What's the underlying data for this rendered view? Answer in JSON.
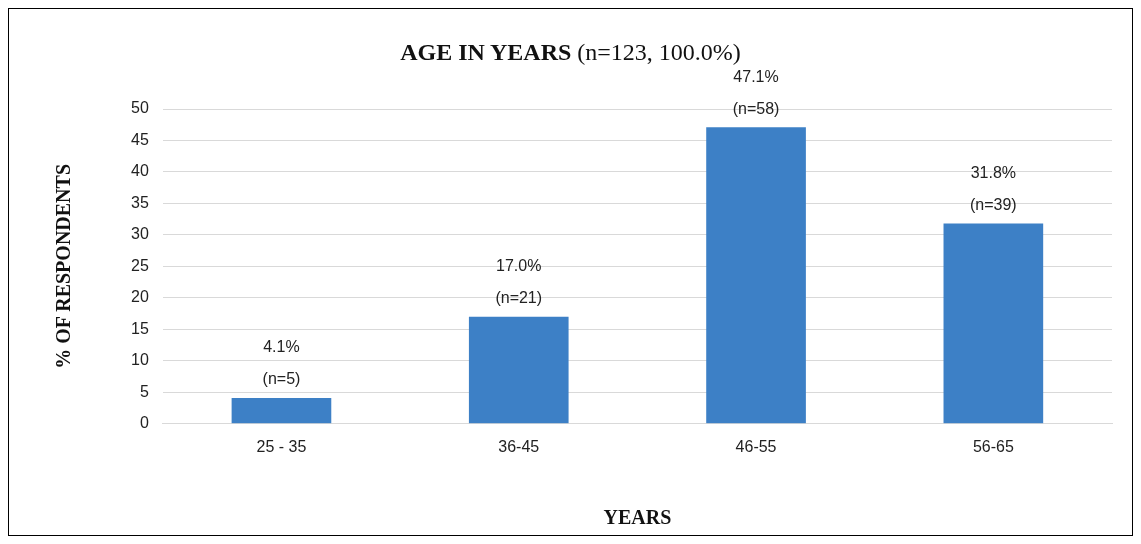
{
  "chart_data": {
    "type": "bar",
    "title": "AGE IN YEARS",
    "subtitle": "(n=123, 100.0%)",
    "xlabel": "YEARS",
    "ylabel": "% OF RESPONDENTS",
    "categories": [
      "25 - 35",
      "36-45",
      "46-55",
      "56-65"
    ],
    "values": [
      4.1,
      17.0,
      47.1,
      31.8
    ],
    "value_labels": [
      "4.1%\n(n=5)",
      "17.0%\n(n=21)",
      "47.1%\n(n=58)",
      "31.8%\n(n=39)"
    ],
    "color": "#3d80c6",
    "ylim": [
      0,
      50
    ],
    "yticks": [
      0,
      5,
      10,
      15,
      20,
      25,
      30,
      35,
      40,
      45,
      50
    ],
    "grid": "y",
    "legend": false
  }
}
